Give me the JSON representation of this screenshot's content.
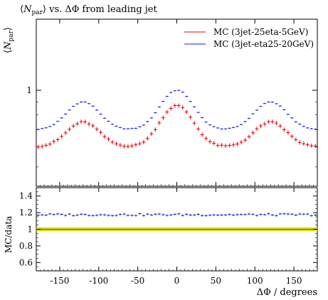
{
  "chart_data": {
    "type": "scatter",
    "title": "⟨N_par⟩ vs. ΔΦ from leading jet",
    "main_panel": {
      "ylabel": "⟨N_par⟩",
      "yscale": "log",
      "ylim": [
        0.42,
        1.9
      ],
      "yticks": [
        1
      ],
      "ytick_labels": [
        "1"
      ],
      "legend_placement": "top-right",
      "series": [
        {
          "name": "MC (3jet-25eta-5GeV)",
          "color": "#e8000b"
        },
        {
          "name": "MC (3jet-eta25-20GeV)",
          "color": "#1420e0"
        }
      ]
    },
    "ratio_panel": {
      "ylabel": "MC/data",
      "ylim": [
        0.5,
        1.5
      ],
      "yticks": [
        0.6,
        0.8,
        1,
        1.2,
        1.4
      ],
      "ytick_labels": [
        "0.6",
        "0.8",
        "1",
        "1.2",
        "1.4"
      ],
      "reference": {
        "value": 1.0,
        "color": "#d8d800"
      },
      "mean_ratio": 1.175
    },
    "xlabel": "ΔΦ / degrees",
    "xlim": [
      -180,
      180
    ],
    "xticks": [
      -150,
      -100,
      -50,
      0,
      50,
      100,
      150
    ],
    "xtick_labels": [
      "-150",
      "-100",
      "-50",
      "0",
      "50",
      "100",
      "150"
    ],
    "grid": false,
    "series_profile": {
      "peak_centers": [
        -120,
        0,
        120
      ],
      "peak_width": 20,
      "blue_baseline": 0.7,
      "blue_peak_amp": 0.2,
      "blue_center_amp": 0.3,
      "red_baseline": 0.6,
      "red_peak_amp": 0.15,
      "red_center_amp": 0.27
    }
  }
}
